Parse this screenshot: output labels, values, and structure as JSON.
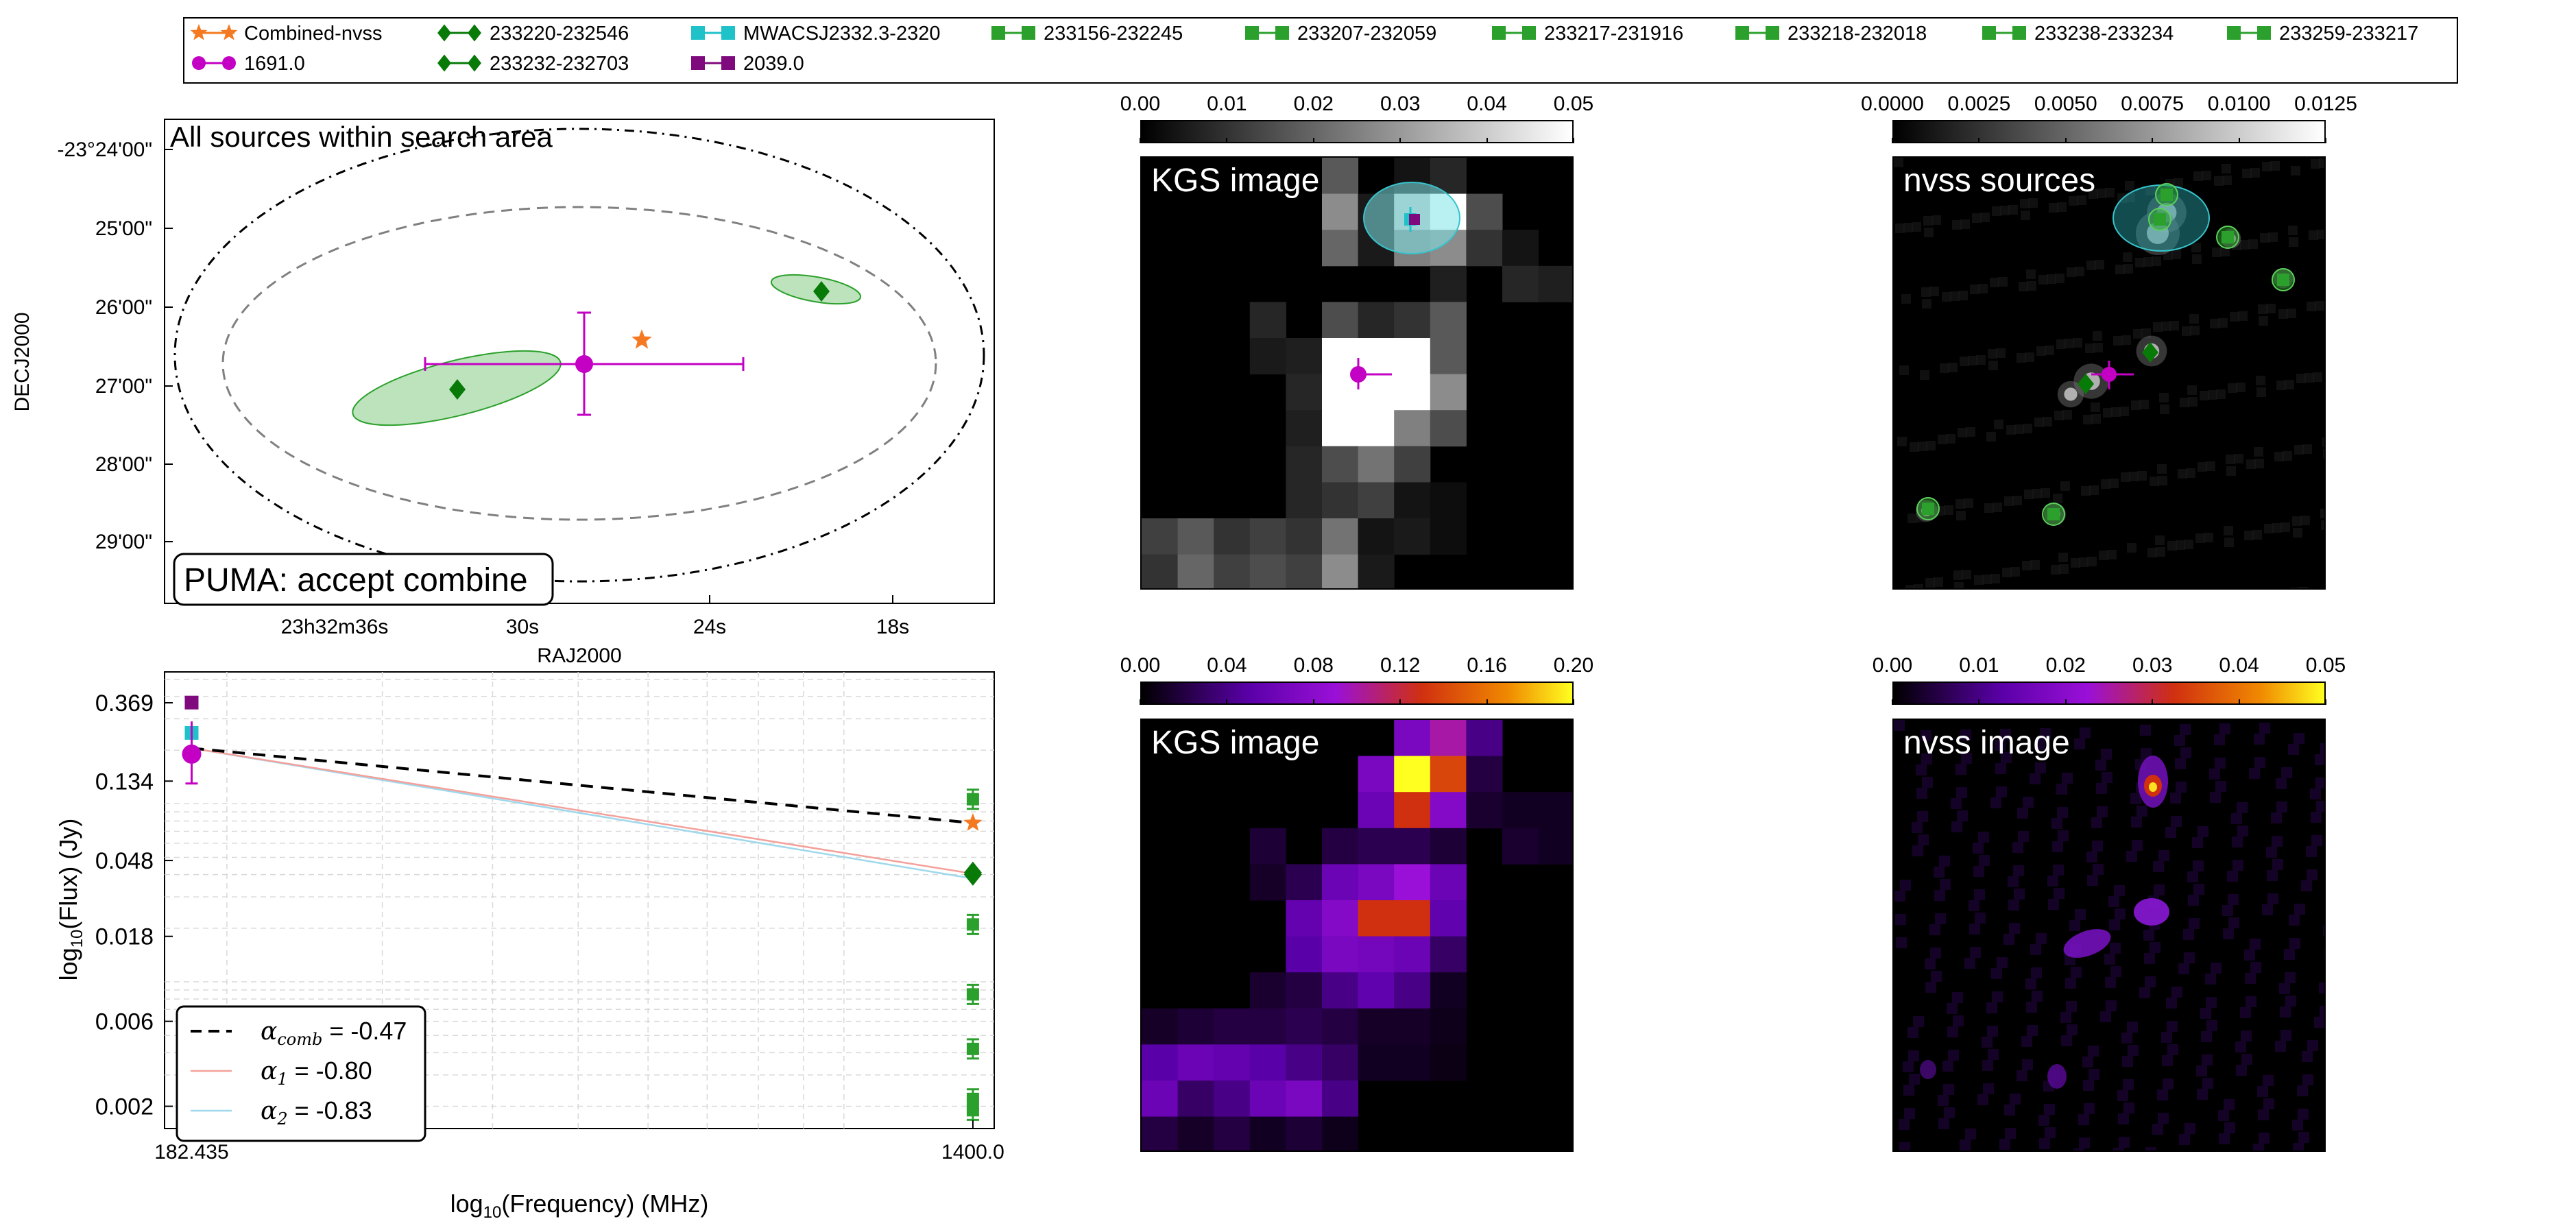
{
  "legend": {
    "entries": [
      {
        "label": "Combined-nvss",
        "color": "#f47920",
        "marker": "star"
      },
      {
        "label": "1691.0",
        "color": "#c300c3",
        "marker": "circle"
      },
      {
        "label": "233220-232546",
        "color": "#087a08",
        "marker": "diamond"
      },
      {
        "label": "233232-232703",
        "color": "#087a08",
        "marker": "diamond"
      },
      {
        "label": "MWACSJ2332.3-2320",
        "color": "#1ec2c8",
        "marker": "square"
      },
      {
        "label": "2039.0",
        "color": "#7e0a7e",
        "marker": "square"
      },
      {
        "label": "233156-232245",
        "color": "#2ca02c",
        "marker": "square"
      },
      {
        "label": "233207-232059",
        "color": "#2ca02c",
        "marker": "square"
      },
      {
        "label": "233217-231916",
        "color": "#2ca02c",
        "marker": "square"
      },
      {
        "label": "233218-232018",
        "color": "#2ca02c",
        "marker": "square"
      },
      {
        "label": "233238-233234",
        "color": "#2ca02c",
        "marker": "square"
      },
      {
        "label": "233259-233217",
        "color": "#2ca02c",
        "marker": "square"
      }
    ]
  },
  "sky_panel": {
    "title": "All sources within search area",
    "decision": "PUMA: accept combine",
    "ylabel": "DECJ2000",
    "xlabel": "RAJ2000",
    "yticks": [
      "-23°24'00\"",
      "25'00\"",
      "26'00\"",
      "27'00\"",
      "28'00\"",
      "29'00\""
    ],
    "xticks": [
      "23h32m36s",
      "30s",
      "24s",
      "18s"
    ]
  },
  "sed_panel": {
    "ylabel": "log",
    "ylabel_sub": "10",
    "ylabel_tail": "(Flux) (Jy)",
    "xlabel": "log",
    "xlabel_sub": "10",
    "xlabel_tail": "(Frequency) (MHz)",
    "yticks": [
      "0.369",
      "0.134",
      "0.048",
      "0.018",
      "0.006",
      "0.002"
    ],
    "xticks": [
      "182.435",
      "1400.0"
    ],
    "fit_legend": [
      {
        "symbol": "α",
        "sub": "comb",
        "text": " = -0.47",
        "color": "#000000",
        "style": "dashed"
      },
      {
        "symbol": "α",
        "sub": "1",
        "text": " = -0.80",
        "color": "#f4a09a",
        "style": "solid"
      },
      {
        "symbol": "α",
        "sub": "2",
        "text": " = -0.83",
        "color": "#9fd8ec",
        "style": "solid"
      }
    ]
  },
  "image_panels": {
    "kgs_sources": {
      "label": "KGS image",
      "cbar_ticks": [
        "0.00",
        "0.01",
        "0.02",
        "0.03",
        "0.04",
        "0.05"
      ]
    },
    "nvss_sources": {
      "label": "nvss sources",
      "cbar_ticks": [
        "0.0000",
        "0.0025",
        "0.0050",
        "0.0075",
        "0.0100",
        "0.0125"
      ]
    },
    "kgs_image": {
      "label": "KGS image",
      "cbar_ticks": [
        "0.00",
        "0.04",
        "0.08",
        "0.12",
        "0.16",
        "0.20"
      ]
    },
    "nvss_image": {
      "label": "nvss image",
      "cbar_ticks": [
        "0.00",
        "0.01",
        "0.02",
        "0.03",
        "0.04",
        "0.05"
      ]
    }
  },
  "chart_data": [
    {
      "type": "scatter",
      "title": "All sources within search area",
      "xlabel": "RAJ2000",
      "ylabel": "DECJ2000",
      "series": [
        {
          "name": "Combined-nvss",
          "x": [
            353.1103
          ],
          "y": [
            -23.4395
          ]
        },
        {
          "name": "1691.0",
          "x": [
            353.1135
          ],
          "y": [
            -23.445
          ],
          "xerr": [
            0.0158
          ],
          "yerr": [
            0.0098
          ]
        },
        {
          "name": "233220-232546",
          "x": [
            353.084
          ],
          "y": [
            -23.4295
          ]
        },
        {
          "name": "233232-232703",
          "x": [
            353.1335
          ],
          "y": [
            -23.451
          ]
        }
      ]
    },
    {
      "type": "scatter",
      "xlabel": "log10(Frequency) (MHz)",
      "ylabel": "log10(Flux) (Jy)",
      "yscale": "log",
      "xscale": "log",
      "xlim": [
        170,
        1480
      ],
      "ylim": [
        0.0015,
        0.55
      ],
      "x_ticks": [
        182.435,
        1400.0
      ],
      "y_ticks": [
        0.369,
        0.134,
        0.048,
        0.018,
        0.006,
        0.002
      ],
      "points": [
        {
          "name": "2039.0",
          "x": 182.435,
          "y": 0.37
        },
        {
          "name": "MWACSJ2332.3-2320",
          "x": 182.435,
          "y": 0.25
        },
        {
          "name": "1691.0",
          "x": 182.435,
          "y": 0.19,
          "yerr": [
            0.1,
            0.06
          ]
        },
        {
          "name": "Combined-nvss",
          "x": 1400.0,
          "y": 0.078
        },
        {
          "name": "233220-232546",
          "x": 1400.0,
          "y": 0.041
        },
        {
          "name": "233232-232703",
          "x": 1400.0,
          "y": 0.04
        },
        {
          "name": "233156-232245",
          "x": 1400.0,
          "y": 0.106
        },
        {
          "name": "233207-232059",
          "x": 1400.0,
          "y": 0.021
        },
        {
          "name": "233217-231916",
          "x": 1400.0,
          "y": 0.0085
        },
        {
          "name": "233218-232018",
          "x": 1400.0,
          "y": 0.0042
        },
        {
          "name": "233238-233234",
          "x": 1400.0,
          "y": 0.0022
        },
        {
          "name": "233259-233217",
          "x": 1400.0,
          "y": 0.0019
        }
      ],
      "fits": [
        {
          "name": "α_comb",
          "value": -0.47,
          "x": [
            182.435,
            1400.0
          ],
          "y": [
            0.205,
            0.078
          ]
        },
        {
          "name": "α_1",
          "value": -0.8,
          "x": [
            182.435,
            1400.0
          ],
          "y": [
            0.205,
            0.0405
          ]
        },
        {
          "name": "α_2",
          "value": -0.83,
          "x": [
            182.435,
            1400.0
          ],
          "y": [
            0.205,
            0.038
          ]
        }
      ]
    }
  ]
}
